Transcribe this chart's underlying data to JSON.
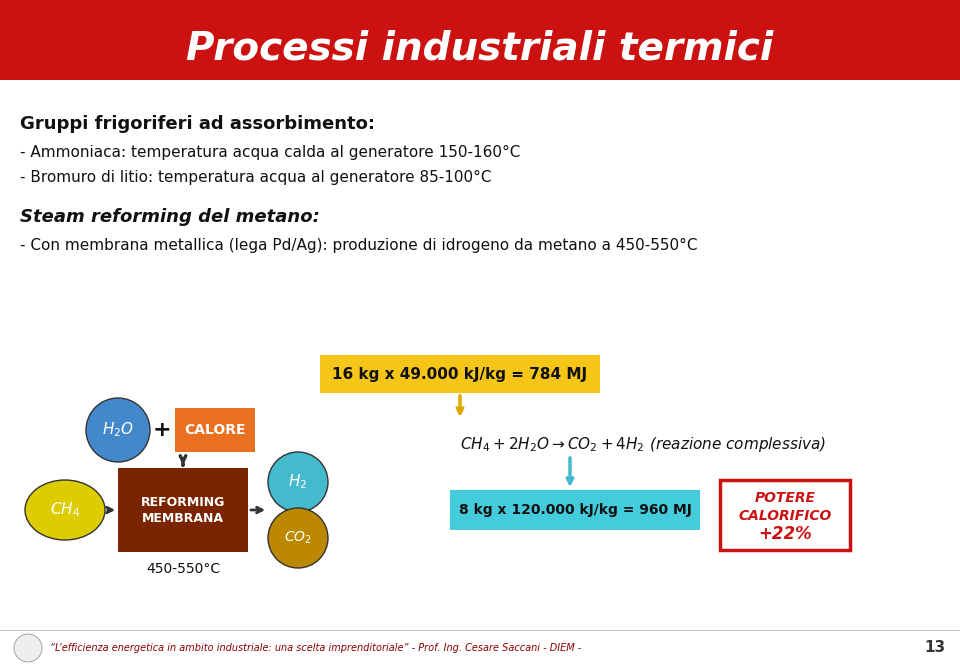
{
  "title": "Processi industriali termici",
  "title_color": "#FFFFFF",
  "header_bg": "#CC0000",
  "bg_color": "#FFFFFF",
  "footer_text": "“L’efficienza energetica in ambito industriale: una scelta imprenditoriale” - Prof. Ing. Cesare Saccani - DIEM -",
  "footer_page": "13",
  "footer_color": "#8B0000",
  "line1": "Gruppi frigoriferi ad assorbimento:",
  "line2": "- Ammoniaca: temperatura acqua calda al generatore 150-160°C",
  "line3": "- Bromuro di litio: temperatura acqua al generatore 85-100°C",
  "line4": "Steam reforming del metano:",
  "line5": "- Con membrana metallica (lega Pd/Ag): produzione di idrogeno da metano a 450-550°C",
  "box_16kg": "16 kg x 49.000 kJ/kg = 784 MJ",
  "box_8kg": "8 kg x 120.000 kJ/kg = 960 MJ",
  "reaction": "CH₄ + 2H₂O → CO₂ + 4H₂ (reazione complessiva)",
  "potere_line1": "POTERE",
  "potere_line2": "CALORIFICO",
  "potere_line3": "+22%",
  "colors": {
    "red_header": "#CC1111",
    "dark_red_text": "#8B0000",
    "blue_h2o": "#4488CC",
    "orange_calore": "#E87020",
    "brown_reforming": "#7B2500",
    "yellow_ch4": "#DDCC00",
    "teal_h2": "#44BBCC",
    "gold_co2": "#BB8800",
    "cyan_box": "#44CCDD",
    "yellow_box": "#DDAA00"
  }
}
